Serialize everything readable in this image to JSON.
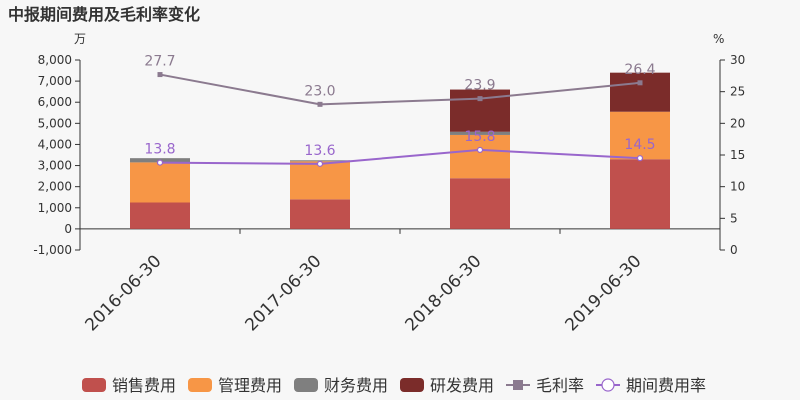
{
  "chart_data": {
    "type": "bar",
    "title": "中报期间费用及毛利率变化",
    "y_left_unit": "万",
    "y_right_unit": "%",
    "categories": [
      "2016-06-30",
      "2017-06-30",
      "2018-06-30",
      "2019-06-30"
    ],
    "y_left_ticks": [
      "-1,000",
      "0",
      "1,000",
      "2,000",
      "3,000",
      "4,000",
      "5,000",
      "6,000",
      "7,000",
      "8,000"
    ],
    "y_right_ticks": [
      "0",
      "5",
      "10",
      "15",
      "20",
      "25",
      "30"
    ],
    "ylim_left": [
      -1000,
      8000
    ],
    "ylim_right": [
      0,
      30
    ],
    "series": [
      {
        "name": "销售费用",
        "kind": "bar",
        "color": "#c0504d",
        "values": [
          1250,
          1400,
          2400,
          3300
        ]
      },
      {
        "name": "管理费用",
        "kind": "bar",
        "color": "#f79646",
        "values": [
          1900,
          1800,
          2050,
          2250
        ]
      },
      {
        "name": "财务费用",
        "kind": "bar",
        "color": "#7f7f7f",
        "values": [
          200,
          50,
          150,
          0
        ]
      },
      {
        "name": "研发费用",
        "kind": "bar",
        "color": "#7b2c2a",
        "values": [
          0,
          0,
          2000,
          1850
        ]
      },
      {
        "name": "毛利率",
        "kind": "line",
        "marker": "square",
        "color": "#8b7a8f",
        "values": [
          27.7,
          23.0,
          23.9,
          26.4
        ],
        "labels": [
          "27.7",
          "23.0",
          "23.9",
          "26.4"
        ]
      },
      {
        "name": "期间费用率",
        "kind": "line",
        "marker": "circle",
        "color": "#9966cc",
        "values": [
          13.8,
          13.6,
          15.8,
          14.5
        ],
        "labels": [
          "13.8",
          "13.6",
          "15.8",
          "14.5"
        ]
      }
    ],
    "legend_position": "bottom",
    "grid": false
  }
}
